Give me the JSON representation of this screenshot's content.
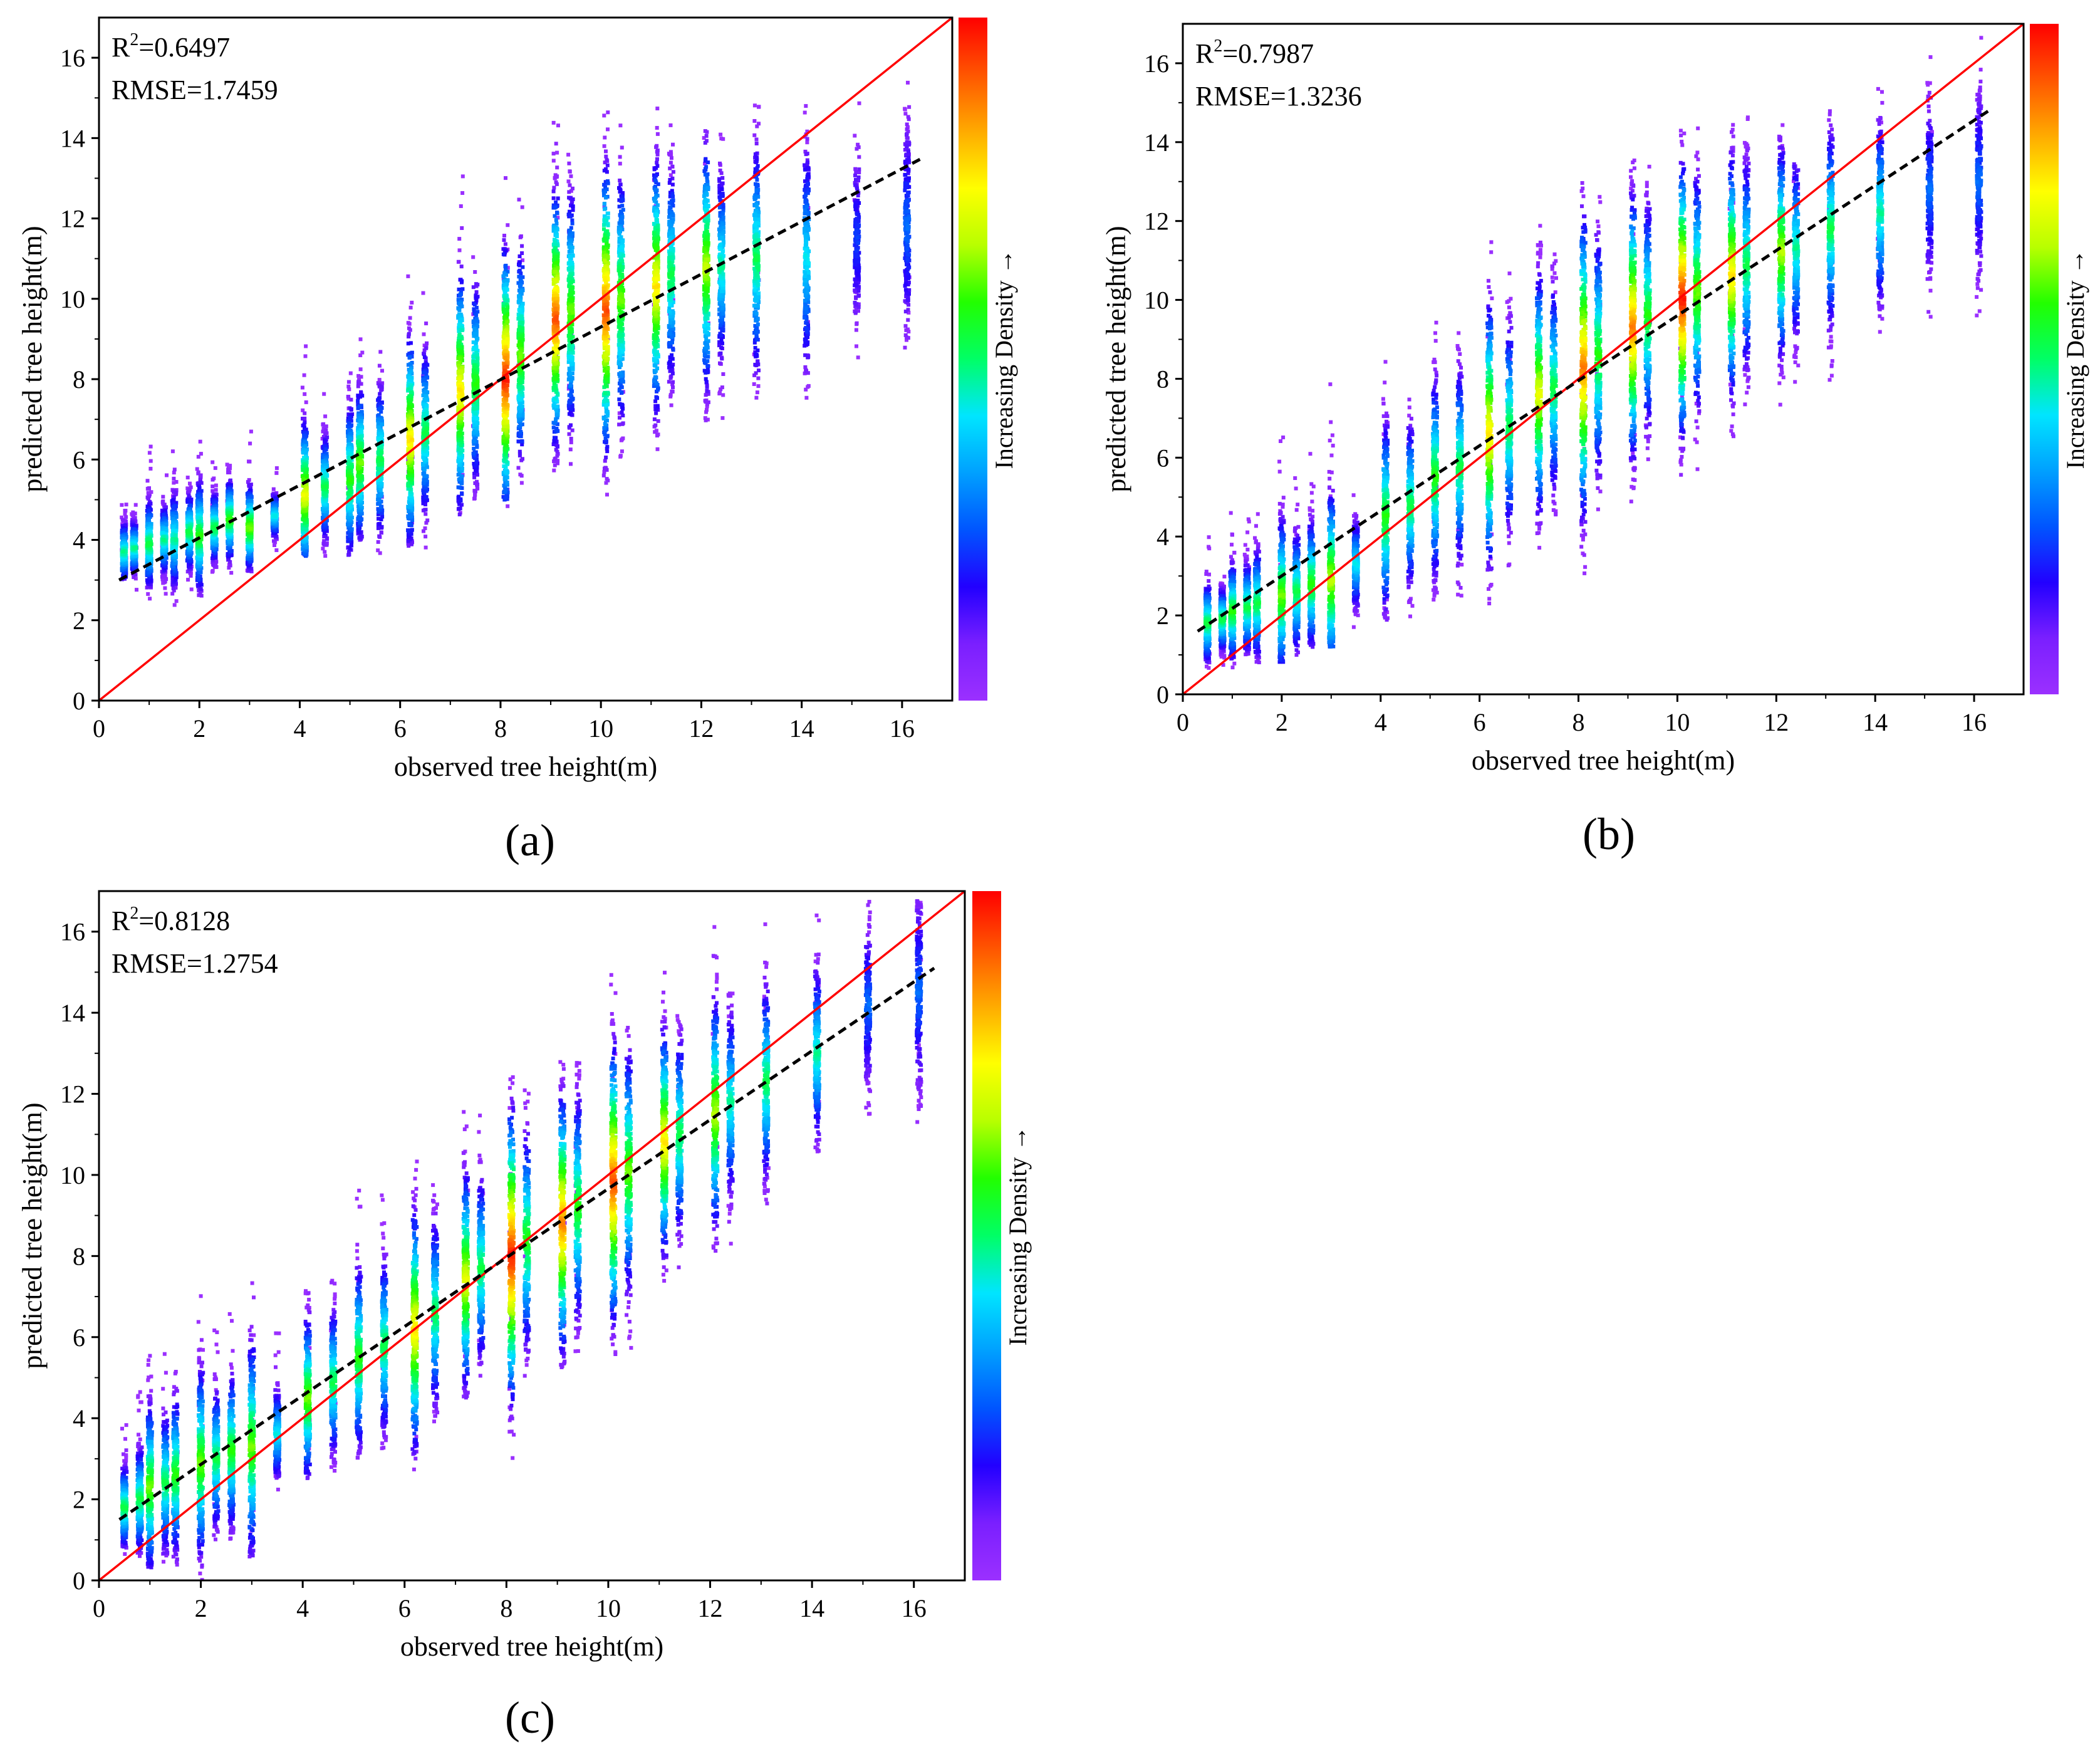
{
  "colors": {
    "identity_line": "#ff0000",
    "fit_line": "#000000",
    "colorbar_stops": [
      "#9b30ff",
      "#7a1fff",
      "#2200ff",
      "#0055ff",
      "#00a0ff",
      "#00e5ff",
      "#00ff66",
      "#22ff00",
      "#b8ff00",
      "#ffff00",
      "#ffaa00",
      "#ff5500",
      "#ff0000"
    ]
  },
  "colorbar_label": "Increasing Density →",
  "chart_data": [
    {
      "panel": "(a)",
      "type": "scatter",
      "subtype": "density-scatter",
      "xlabel": "observed tree height(m)",
      "ylabel": "predicted tree height(m)",
      "xlim": [
        0,
        17
      ],
      "ylim": [
        0,
        17
      ],
      "xticks": [
        0,
        2,
        4,
        6,
        8,
        10,
        12,
        14,
        16
      ],
      "yticks": [
        0,
        2,
        4,
        6,
        8,
        10,
        12,
        14,
        16
      ],
      "r2_prefix": "R",
      "r2_sup": "2",
      "r2_value": "=0.6497",
      "rmse_text": "RMSE=1.7459",
      "fit_line": {
        "x": [
          0.4,
          16.4
        ],
        "y": [
          3.0,
          13.5
        ]
      },
      "identity_line": {
        "x": [
          0,
          17
        ],
        "y": [
          0,
          17
        ]
      },
      "columns": [
        {
          "x": 0.5,
          "min": 3.0,
          "max": 5.0,
          "center": 3.7,
          "peak": 0.45
        },
        {
          "x": 0.7,
          "min": 2.9,
          "max": 4.7,
          "center": 3.8,
          "peak": 0.45
        },
        {
          "x": 1.0,
          "min": 2.8,
          "max": 5.7,
          "center": 3.9,
          "peak": 0.5
        },
        {
          "x": 1.3,
          "min": 2.9,
          "max": 5.2,
          "center": 4.0,
          "peak": 0.45
        },
        {
          "x": 1.5,
          "min": 2.6,
          "max": 5.8,
          "center": 4.0,
          "peak": 0.45
        },
        {
          "x": 1.8,
          "min": 3.0,
          "max": 5.5,
          "center": 4.2,
          "peak": 0.5
        },
        {
          "x": 2.0,
          "min": 2.6,
          "max": 6.3,
          "center": 4.1,
          "peak": 0.55
        },
        {
          "x": 2.3,
          "min": 3.2,
          "max": 5.5,
          "center": 4.3,
          "peak": 0.5
        },
        {
          "x": 2.6,
          "min": 3.3,
          "max": 6.0,
          "center": 4.5,
          "peak": 0.55
        },
        {
          "x": 3.0,
          "min": 3.2,
          "max": 6.0,
          "center": 4.3,
          "peak": 0.6
        },
        {
          "x": 3.5,
          "min": 3.8,
          "max": 5.3,
          "center": 4.6,
          "peak": 0.4
        },
        {
          "x": 4.1,
          "min": 3.6,
          "max": 8.5,
          "center": 5.1,
          "peak": 0.7
        },
        {
          "x": 4.5,
          "min": 3.5,
          "max": 7.0,
          "center": 5.3,
          "peak": 0.5
        },
        {
          "x": 5.0,
          "min": 3.6,
          "max": 8.6,
          "center": 5.5,
          "peak": 0.55
        },
        {
          "x": 5.2,
          "min": 4.0,
          "max": 9.0,
          "center": 5.9,
          "peak": 0.6
        },
        {
          "x": 5.6,
          "min": 3.9,
          "max": 8.8,
          "center": 6.0,
          "peak": 0.5
        },
        {
          "x": 6.2,
          "min": 3.8,
          "max": 10.5,
          "center": 6.5,
          "peak": 0.75
        },
        {
          "x": 6.5,
          "min": 4.0,
          "max": 9.5,
          "center": 6.7,
          "peak": 0.5
        },
        {
          "x": 7.2,
          "min": 4.6,
          "max": 12.4,
          "center": 7.7,
          "peak": 0.75
        },
        {
          "x": 7.5,
          "min": 5.0,
          "max": 11.5,
          "center": 7.9,
          "peak": 0.55
        },
        {
          "x": 8.1,
          "min": 5.0,
          "max": 13.5,
          "center": 8.0,
          "peak": 0.95
        },
        {
          "x": 8.4,
          "min": 5.5,
          "max": 12.5,
          "center": 8.6,
          "peak": 0.6
        },
        {
          "x": 9.1,
          "min": 5.8,
          "max": 14.0,
          "center": 9.5,
          "peak": 0.9
        },
        {
          "x": 9.4,
          "min": 5.8,
          "max": 13.5,
          "center": 9.7,
          "peak": 0.6
        },
        {
          "x": 10.1,
          "min": 5.4,
          "max": 14.8,
          "center": 9.7,
          "peak": 0.9
        },
        {
          "x": 10.4,
          "min": 6.0,
          "max": 14.0,
          "center": 10.0,
          "peak": 0.6
        },
        {
          "x": 11.1,
          "min": 6.5,
          "max": 14.8,
          "center": 10.3,
          "peak": 0.75
        },
        {
          "x": 11.4,
          "min": 7.0,
          "max": 14.0,
          "center": 10.6,
          "peak": 0.5
        },
        {
          "x": 12.1,
          "min": 6.5,
          "max": 14.6,
          "center": 10.8,
          "peak": 0.65
        },
        {
          "x": 12.4,
          "min": 7.2,
          "max": 13.5,
          "center": 10.8,
          "peak": 0.45
        },
        {
          "x": 13.1,
          "min": 7.3,
          "max": 14.8,
          "center": 11.0,
          "peak": 0.5
        },
        {
          "x": 14.1,
          "min": 7.5,
          "max": 14.8,
          "center": 11.0,
          "peak": 0.4
        },
        {
          "x": 15.1,
          "min": 8.5,
          "max": 14.2,
          "center": 11.5,
          "peak": 0.2
        },
        {
          "x": 16.1,
          "min": 8.0,
          "max": 14.8,
          "center": 11.8,
          "peak": 0.25
        }
      ]
    },
    {
      "panel": "(b)",
      "type": "scatter",
      "subtype": "density-scatter",
      "xlabel": "observed tree height(m)",
      "ylabel": "predicted tree height(m)",
      "xlim": [
        0,
        17
      ],
      "ylim": [
        0,
        17
      ],
      "xticks": [
        0,
        2,
        4,
        6,
        8,
        10,
        12,
        14,
        16
      ],
      "yticks": [
        0,
        2,
        4,
        6,
        8,
        10,
        12,
        14,
        16
      ],
      "r2_prefix": "R",
      "r2_sup": "2",
      "r2_value": "=0.7987",
      "rmse_text": "RMSE=1.3236",
      "fit_line": {
        "x": [
          0.3,
          16.3
        ],
        "y": [
          1.6,
          14.8
        ]
      },
      "identity_line": {
        "x": [
          0,
          17
        ],
        "y": [
          0,
          17
        ]
      },
      "columns": [
        {
          "x": 0.5,
          "min": 0.8,
          "max": 3.5,
          "center": 1.8,
          "peak": 0.5
        },
        {
          "x": 0.8,
          "min": 0.9,
          "max": 3.0,
          "center": 1.9,
          "peak": 0.5
        },
        {
          "x": 1.0,
          "min": 0.9,
          "max": 4.2,
          "center": 2.1,
          "peak": 0.55
        },
        {
          "x": 1.3,
          "min": 1.0,
          "max": 4.0,
          "center": 2.2,
          "peak": 0.5
        },
        {
          "x": 1.5,
          "min": 0.8,
          "max": 4.5,
          "center": 2.3,
          "peak": 0.5
        },
        {
          "x": 2.0,
          "min": 0.8,
          "max": 6.0,
          "center": 2.5,
          "peak": 0.6
        },
        {
          "x": 2.3,
          "min": 1.0,
          "max": 5.0,
          "center": 2.6,
          "peak": 0.5
        },
        {
          "x": 2.6,
          "min": 1.2,
          "max": 5.5,
          "center": 2.8,
          "peak": 0.55
        },
        {
          "x": 3.0,
          "min": 1.2,
          "max": 7.2,
          "center": 2.9,
          "peak": 0.65
        },
        {
          "x": 3.5,
          "min": 2.0,
          "max": 5.0,
          "center": 3.3,
          "peak": 0.4
        },
        {
          "x": 4.1,
          "min": 1.8,
          "max": 8.2,
          "center": 4.5,
          "peak": 0.55
        },
        {
          "x": 4.6,
          "min": 2.0,
          "max": 7.5,
          "center": 4.8,
          "peak": 0.5
        },
        {
          "x": 5.1,
          "min": 2.5,
          "max": 9.2,
          "center": 5.5,
          "peak": 0.55
        },
        {
          "x": 5.6,
          "min": 2.5,
          "max": 9.0,
          "center": 5.8,
          "peak": 0.5
        },
        {
          "x": 6.2,
          "min": 2.2,
          "max": 11.0,
          "center": 6.6,
          "peak": 0.75
        },
        {
          "x": 6.6,
          "min": 3.0,
          "max": 10.0,
          "center": 6.8,
          "peak": 0.5
        },
        {
          "x": 7.2,
          "min": 3.5,
          "max": 11.5,
          "center": 7.6,
          "peak": 0.7
        },
        {
          "x": 7.5,
          "min": 4.0,
          "max": 11.0,
          "center": 7.8,
          "peak": 0.5
        },
        {
          "x": 8.1,
          "min": 3.0,
          "max": 13.0,
          "center": 8.3,
          "peak": 0.85
        },
        {
          "x": 8.4,
          "min": 4.5,
          "max": 12.5,
          "center": 8.6,
          "peak": 0.55
        },
        {
          "x": 9.1,
          "min": 4.8,
          "max": 13.5,
          "center": 9.3,
          "peak": 0.85
        },
        {
          "x": 9.4,
          "min": 5.5,
          "max": 13.0,
          "center": 9.6,
          "peak": 0.55
        },
        {
          "x": 10.1,
          "min": 5.5,
          "max": 14.5,
          "center": 10.0,
          "peak": 0.95
        },
        {
          "x": 10.4,
          "min": 6.0,
          "max": 13.8,
          "center": 10.2,
          "peak": 0.6
        },
        {
          "x": 11.1,
          "min": 6.5,
          "max": 14.5,
          "center": 10.6,
          "peak": 0.75
        },
        {
          "x": 11.4,
          "min": 7.0,
          "max": 14.0,
          "center": 10.9,
          "peak": 0.5
        },
        {
          "x": 12.1,
          "min": 7.2,
          "max": 14.2,
          "center": 11.2,
          "peak": 0.65
        },
        {
          "x": 12.4,
          "min": 7.5,
          "max": 13.5,
          "center": 11.3,
          "peak": 0.45
        },
        {
          "x": 13.1,
          "min": 8.2,
          "max": 14.8,
          "center": 11.8,
          "peak": 0.5
        },
        {
          "x": 14.1,
          "min": 9.0,
          "max": 15.2,
          "center": 12.2,
          "peak": 0.45
        },
        {
          "x": 15.1,
          "min": 9.5,
          "max": 15.5,
          "center": 12.8,
          "peak": 0.25
        },
        {
          "x": 16.1,
          "min": 9.8,
          "max": 16.0,
          "center": 13.0,
          "peak": 0.25
        }
      ]
    },
    {
      "panel": "(c)",
      "type": "scatter",
      "subtype": "density-scatter",
      "xlabel": "observed tree height(m)",
      "ylabel": "predicted tree height(m)",
      "xlim": [
        0,
        17
      ],
      "ylim": [
        0,
        17
      ],
      "xticks": [
        0,
        2,
        4,
        6,
        8,
        10,
        12,
        14,
        16
      ],
      "yticks": [
        0,
        2,
        4,
        6,
        8,
        10,
        12,
        14,
        16
      ],
      "r2_prefix": "R",
      "r2_sup": "2",
      "r2_value": "=0.8128",
      "rmse_text": "RMSE=1.2754",
      "fit_line": {
        "x": [
          0.4,
          16.4
        ],
        "y": [
          1.5,
          15.1
        ]
      },
      "identity_line": {
        "x": [
          0,
          17
        ],
        "y": [
          0,
          17
        ]
      },
      "columns": [
        {
          "x": 0.5,
          "min": 0.8,
          "max": 3.5,
          "center": 1.8,
          "peak": 0.5
        },
        {
          "x": 0.8,
          "min": 0.6,
          "max": 4.0,
          "center": 2.0,
          "peak": 0.5
        },
        {
          "x": 1.0,
          "min": 0.3,
          "max": 5.8,
          "center": 2.3,
          "peak": 0.6
        },
        {
          "x": 1.3,
          "min": 0.5,
          "max": 5.0,
          "center": 2.4,
          "peak": 0.5
        },
        {
          "x": 1.5,
          "min": 0.3,
          "max": 5.5,
          "center": 2.6,
          "peak": 0.55
        },
        {
          "x": 2.0,
          "min": 0.3,
          "max": 6.5,
          "center": 2.9,
          "peak": 0.6
        },
        {
          "x": 2.3,
          "min": 1.0,
          "max": 5.5,
          "center": 3.0,
          "peak": 0.5
        },
        {
          "x": 2.6,
          "min": 1.0,
          "max": 6.0,
          "center": 3.2,
          "peak": 0.55
        },
        {
          "x": 3.0,
          "min": 0.5,
          "max": 7.5,
          "center": 3.3,
          "peak": 0.6
        },
        {
          "x": 3.5,
          "min": 2.5,
          "max": 5.5,
          "center": 3.6,
          "peak": 0.4
        },
        {
          "x": 4.1,
          "min": 2.5,
          "max": 7.8,
          "center": 4.5,
          "peak": 0.6
        },
        {
          "x": 4.6,
          "min": 2.8,
          "max": 7.5,
          "center": 4.9,
          "peak": 0.5
        },
        {
          "x": 5.1,
          "min": 3.0,
          "max": 9.0,
          "center": 5.5,
          "peak": 0.55
        },
        {
          "x": 5.6,
          "min": 3.2,
          "max": 8.8,
          "center": 5.8,
          "peak": 0.5
        },
        {
          "x": 6.2,
          "min": 3.0,
          "max": 10.8,
          "center": 6.2,
          "peak": 0.75
        },
        {
          "x": 6.6,
          "min": 3.5,
          "max": 9.5,
          "center": 6.6,
          "peak": 0.5
        },
        {
          "x": 7.2,
          "min": 4.5,
          "max": 11.5,
          "center": 7.4,
          "peak": 0.7
        },
        {
          "x": 7.5,
          "min": 5.0,
          "max": 11.0,
          "center": 7.7,
          "peak": 0.5
        },
        {
          "x": 8.1,
          "min": 3.0,
          "max": 12.5,
          "center": 8.0,
          "peak": 0.95
        },
        {
          "x": 8.4,
          "min": 5.0,
          "max": 12.0,
          "center": 8.4,
          "peak": 0.55
        },
        {
          "x": 9.1,
          "min": 5.2,
          "max": 13.5,
          "center": 8.8,
          "peak": 0.85
        },
        {
          "x": 9.4,
          "min": 5.5,
          "max": 12.8,
          "center": 9.2,
          "peak": 0.55
        },
        {
          "x": 10.1,
          "min": 5.5,
          "max": 14.5,
          "center": 9.8,
          "peak": 0.9
        },
        {
          "x": 10.4,
          "min": 6.0,
          "max": 13.8,
          "center": 10.1,
          "peak": 0.6
        },
        {
          "x": 11.1,
          "min": 7.2,
          "max": 14.5,
          "center": 10.8,
          "peak": 0.75
        },
        {
          "x": 11.4,
          "min": 7.5,
          "max": 14.0,
          "center": 11.0,
          "peak": 0.5
        },
        {
          "x": 12.1,
          "min": 8.0,
          "max": 15.5,
          "center": 11.5,
          "peak": 0.65
        },
        {
          "x": 12.4,
          "min": 8.5,
          "max": 14.5,
          "center": 11.8,
          "peak": 0.45
        },
        {
          "x": 13.1,
          "min": 9.2,
          "max": 15.5,
          "center": 12.3,
          "peak": 0.5
        },
        {
          "x": 14.1,
          "min": 10.5,
          "max": 16.0,
          "center": 13.0,
          "peak": 0.45
        },
        {
          "x": 15.1,
          "min": 11.5,
          "max": 16.8,
          "center": 14.2,
          "peak": 0.25
        },
        {
          "x": 16.1,
          "min": 10.5,
          "max": 16.8,
          "center": 14.5,
          "peak": 0.25
        }
      ]
    }
  ]
}
